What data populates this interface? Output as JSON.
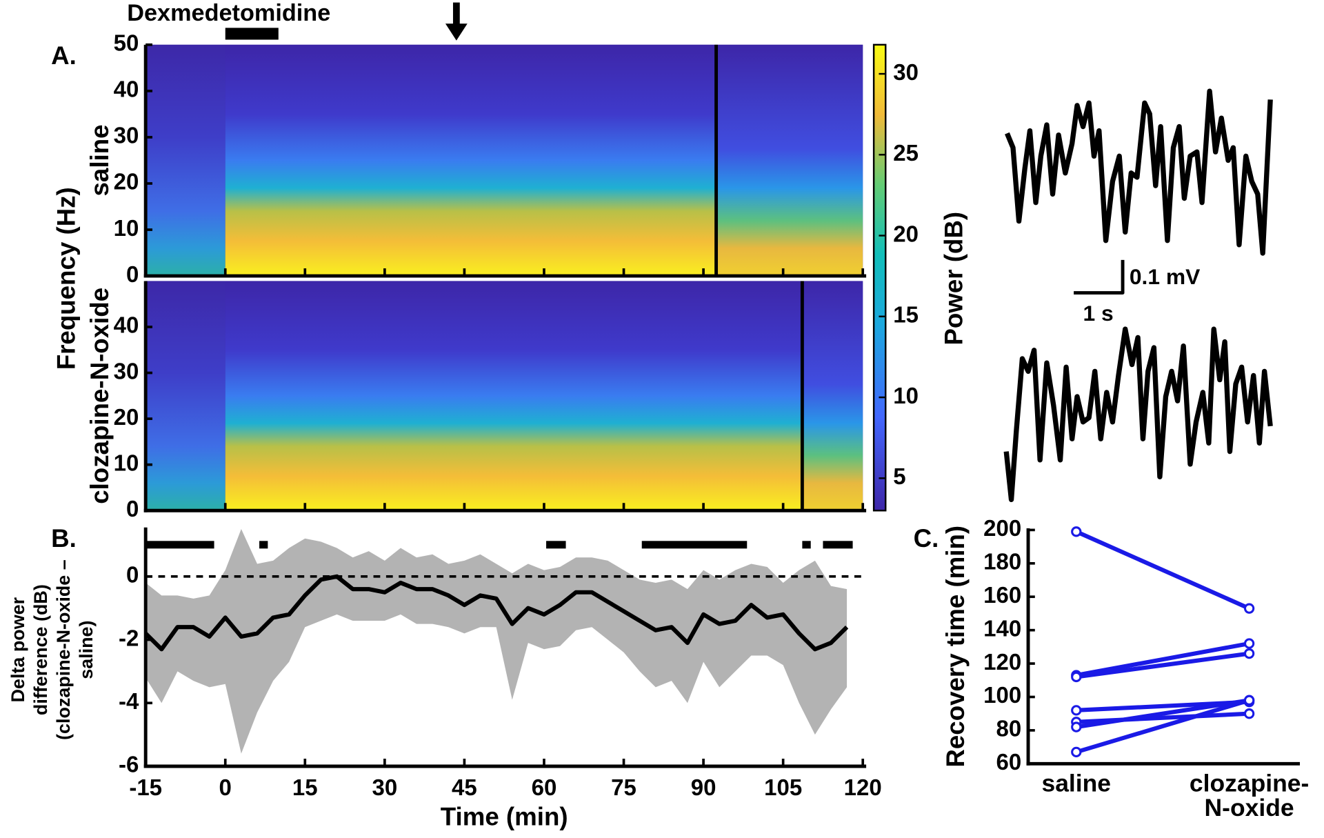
{
  "chart_data": [
    {
      "type": "heatmap",
      "title": "A.",
      "row_label": "saline",
      "ylabel": "Frequency (Hz)",
      "annotation": "Dexmedetomidine",
      "annotation_span": [
        0,
        10
      ],
      "arrow_x": 43.5,
      "xlim": [
        -15,
        120
      ],
      "xticks": [
        -15,
        0,
        15,
        30,
        45,
        60,
        75,
        90,
        105,
        120
      ],
      "ylim": [
        0,
        50
      ],
      "yticks": [
        0,
        10,
        20,
        30,
        40,
        50
      ],
      "marker_x": 92.4,
      "colorbar": {
        "label": "Power (dB)",
        "lim": [
          3,
          31.8
        ],
        "ticks": [
          5,
          10,
          15,
          20,
          25,
          30
        ]
      },
      "scalebar": {
        "y_label": "0.1 mV",
        "x_label": "1 s"
      }
    },
    {
      "type": "heatmap",
      "row_label": "clozapine-N-oxide",
      "xlim": [
        -15,
        120
      ],
      "xticks": [
        -15,
        0,
        15,
        30,
        45,
        60,
        75,
        90,
        105,
        120
      ],
      "ylim": [
        0,
        50
      ],
      "yticks": [
        0,
        10,
        20,
        30,
        40
      ],
      "marker_x": 108.6
    },
    {
      "type": "line",
      "title": "B.",
      "xlabel": "Time (min)",
      "ylabel": [
        "Delta power",
        "difference (dB)",
        "(clozapine-N-oxide –",
        "saline)"
      ],
      "xlim": [
        -15,
        120
      ],
      "xticks": [
        -15,
        0,
        15,
        30,
        45,
        60,
        75,
        90,
        105,
        120
      ],
      "ylim": [
        -6,
        1.55
      ],
      "yticks": [
        -6,
        -4,
        -2,
        0
      ],
      "hline": 0,
      "x": [
        -15,
        -12,
        -9,
        -6,
        -3,
        0,
        3,
        6,
        9,
        12,
        15,
        18,
        21,
        24,
        27,
        30,
        33,
        36,
        39,
        42,
        45,
        48,
        51,
        54,
        57,
        60,
        63,
        66,
        69,
        72,
        75,
        78,
        81,
        84,
        87,
        90,
        93,
        96,
        99,
        102,
        105,
        108,
        111,
        114,
        117
      ],
      "values": [
        -1.8,
        -2.3,
        -1.6,
        -1.6,
        -1.9,
        -1.3,
        -1.9,
        -1.8,
        -1.3,
        -1.2,
        -0.6,
        -0.1,
        0,
        -0.4,
        -0.4,
        -0.5,
        -0.2,
        -0.4,
        -0.4,
        -0.6,
        -0.9,
        -0.6,
        -0.7,
        -1.5,
        -1.0,
        -1.2,
        -0.9,
        -0.5,
        -0.5,
        -0.8,
        -1.1,
        -1.4,
        -1.7,
        -1.6,
        -2.1,
        -1.2,
        -1.5,
        -1.4,
        -0.9,
        -1.3,
        -1.2,
        -1.8,
        -2.3,
        -2.1,
        -1.6
      ],
      "upper": [
        -0.2,
        -0.6,
        -0.6,
        -0.7,
        -0.6,
        0.2,
        1.5,
        0.4,
        0.5,
        0.9,
        1.2,
        1.1,
        0.9,
        0.6,
        0.8,
        0.5,
        0.9,
        0.6,
        0.7,
        0.4,
        0.5,
        0.7,
        0.4,
        0.1,
        0.4,
        0.2,
        0.3,
        0.6,
        0.6,
        0.5,
        0.2,
        -0.1,
        -0.2,
        -0.1,
        -0.4,
        0.2,
        -0.1,
        0.2,
        0.4,
        0.3,
        -0.2,
        0.2,
        0.5,
        -0.3,
        -0.4
      ],
      "lower": [
        -3.2,
        -4.0,
        -3.0,
        -3.3,
        -3.5,
        -3.4,
        -5.6,
        -4.3,
        -3.3,
        -2.7,
        -1.6,
        -1.4,
        -1.2,
        -1.4,
        -1.4,
        -1.4,
        -1.2,
        -1.5,
        -1.5,
        -1.6,
        -1.8,
        -1.6,
        -1.6,
        -3.9,
        -2.1,
        -2.3,
        -2.2,
        -1.7,
        -1.6,
        -2.0,
        -2.4,
        -3.0,
        -3.5,
        -3.3,
        -4.0,
        -2.7,
        -3.5,
        -3.0,
        -2.5,
        -2.5,
        -2.8,
        -4.0,
        -5.0,
        -4.2,
        -3.5
      ],
      "color": "#000000",
      "band_color": "#b3b3b3",
      "significant_spans": [
        [
          -15,
          -2.1
        ],
        [
          6.4,
          8
        ],
        [
          60.4,
          64.1
        ],
        [
          78.4,
          98.2
        ],
        [
          108.6,
          110.2
        ],
        [
          112.5,
          118.1
        ]
      ]
    },
    {
      "type": "paired",
      "title": "C.",
      "ylabel": "Recovery time (min)",
      "categories": [
        "saline",
        [
          "clozapine-",
          "N-oxide"
        ]
      ],
      "ylim": [
        60,
        200
      ],
      "yticks": [
        60,
        80,
        100,
        120,
        140,
        160,
        180,
        200
      ],
      "color": "#1a1ae6",
      "pairs": [
        [
          199,
          153
        ],
        [
          113,
          132
        ],
        [
          112,
          126
        ],
        [
          92,
          97
        ],
        [
          85,
          90
        ],
        [
          82,
          98
        ],
        [
          67,
          98
        ]
      ]
    }
  ]
}
